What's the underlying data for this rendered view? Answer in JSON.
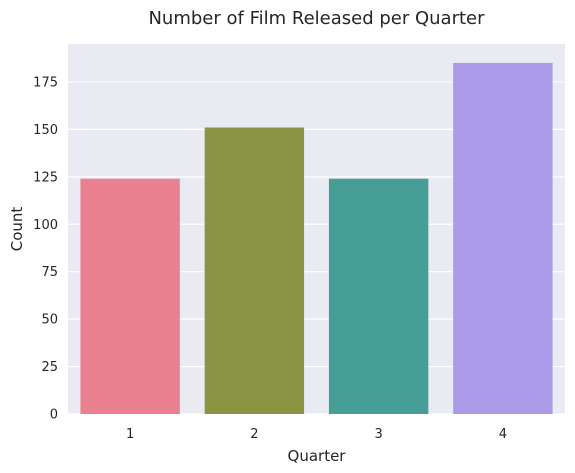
{
  "chart_data": {
    "type": "bar",
    "title": "Number of Film Released per Quarter",
    "xlabel": "Quarter",
    "ylabel": "Count",
    "categories": [
      "1",
      "2",
      "3",
      "4"
    ],
    "values": [
      124,
      151,
      124,
      185
    ],
    "ylim": [
      0,
      195
    ],
    "yticks": [
      0,
      25,
      50,
      75,
      100,
      125,
      150,
      175
    ],
    "grid": true,
    "colors": [
      "#e8808f",
      "#8a9442",
      "#469e97",
      "#aa9ae8"
    ],
    "background_color": "#eaeaf2",
    "grid_color": "#ffffff"
  }
}
